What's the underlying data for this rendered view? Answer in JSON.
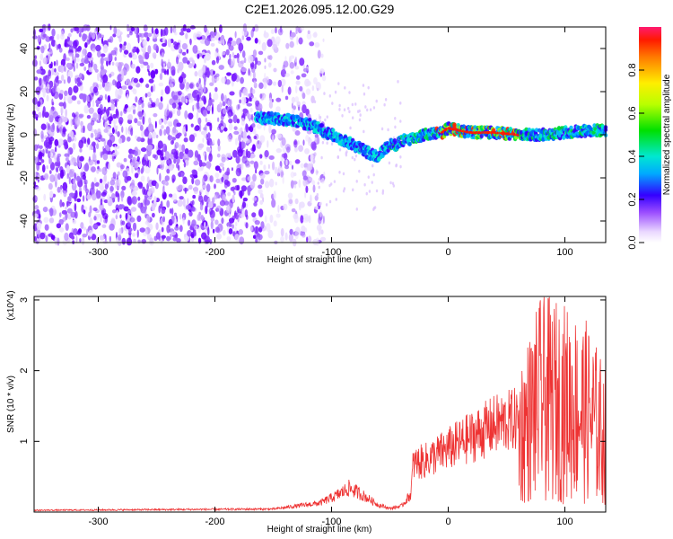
{
  "title": "C2E1.2026.095.12.00.G29",
  "colors": {
    "snr_line": "#ee3333",
    "axis": "#000000"
  },
  "chart_data": [
    {
      "type": "heatmap",
      "xlabel": "Height of straight line (km)",
      "ylabel": "Frequency (Hz)",
      "xlim": [
        -355,
        135
      ],
      "ylim": [
        -50,
        50
      ],
      "xticks": [
        -300,
        -200,
        -100,
        0,
        100
      ],
      "yticks": [
        -40,
        -20,
        0,
        20,
        40
      ],
      "noise_region": {
        "dense_until_x": -160,
        "sparse_until_x": -115
      },
      "signal_ridge": {
        "x": [
          -165,
          -140,
          -120,
          -100,
          -80,
          -70,
          -60,
          -50,
          -45,
          -40,
          -20,
          -5,
          0,
          20,
          40,
          60,
          80,
          100,
          120,
          135
        ],
        "y": [
          8,
          7,
          5,
          0,
          -5,
          -8,
          -10,
          -4,
          -5,
          -3,
          0,
          1,
          3,
          1,
          1,
          0,
          0,
          1,
          2,
          2
        ]
      }
    },
    {
      "type": "colorbar",
      "label": "Normalized spectral amplitude",
      "range": [
        0,
        1
      ],
      "ticks": [
        "0.0",
        "0.2",
        "0.4",
        "0.6",
        "0.8"
      ]
    },
    {
      "type": "line",
      "xlabel": "Height of straight line (km)",
      "ylabel": "SNR (10 * v/v)",
      "y_multiplier": "(x10^4)",
      "xlim": [
        -355,
        135
      ],
      "ylim": [
        0,
        3.05
      ],
      "xticks": [
        -300,
        -200,
        -100,
        0,
        100
      ],
      "yticks": [
        1,
        2,
        3
      ],
      "envelope": {
        "x": [
          -355,
          -150,
          -110,
          -95,
          -85,
          -75,
          -60,
          -50,
          -40,
          -32,
          -30,
          -20,
          0,
          20,
          40,
          60,
          70,
          80,
          100,
          120,
          135
        ],
        "y": [
          0.03,
          0.05,
          0.15,
          0.28,
          0.4,
          0.3,
          0.12,
          0.06,
          0.1,
          0.3,
          0.8,
          0.85,
          1.05,
          1.25,
          1.45,
          1.55,
          1.9,
          2.3,
          2.2,
          2.0,
          1.5
        ]
      }
    }
  ]
}
